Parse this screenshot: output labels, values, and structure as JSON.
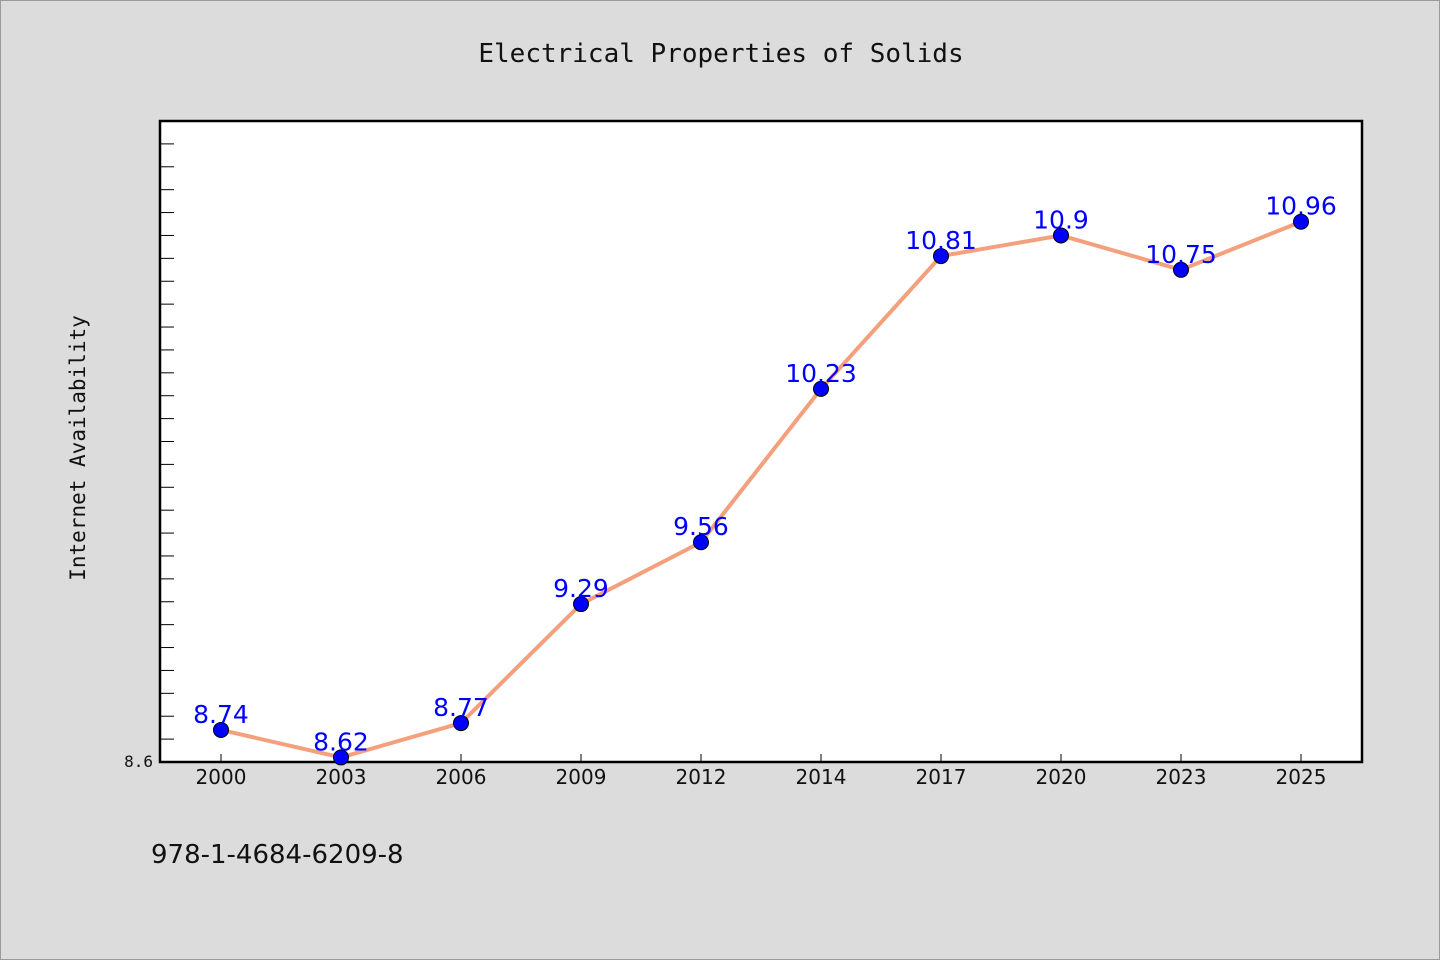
{
  "chart_data": {
    "type": "line",
    "title": "Electrical Properties of Solids",
    "xlabel": "",
    "ylabel": "Internet Availability",
    "categories": [
      "2000",
      "2003",
      "2006",
      "2009",
      "2012",
      "2014",
      "2017",
      "2020",
      "2023",
      "2025"
    ],
    "series": [
      {
        "values": [
          8.74,
          8.62,
          8.77,
          9.29,
          9.56,
          10.23,
          10.81,
          10.9,
          10.75,
          10.96
        ]
      }
    ],
    "data_labels": [
      "8.74",
      "8.62",
      "8.77",
      "9.29",
      "9.56",
      "10.23",
      "10.81",
      "10.9",
      "10.75",
      "10.96"
    ],
    "ylim": [
      8.6,
      11.4
    ],
    "y_tick_label": "8.6",
    "grid": false,
    "legend": "none",
    "colors": {
      "line": "#f4a07c",
      "marker": "#0000ff",
      "label": "#0000ff",
      "background": "#dcdcdc",
      "plot_background": "#ffffff"
    }
  },
  "footer_note": "978-1-4684-6209-8"
}
